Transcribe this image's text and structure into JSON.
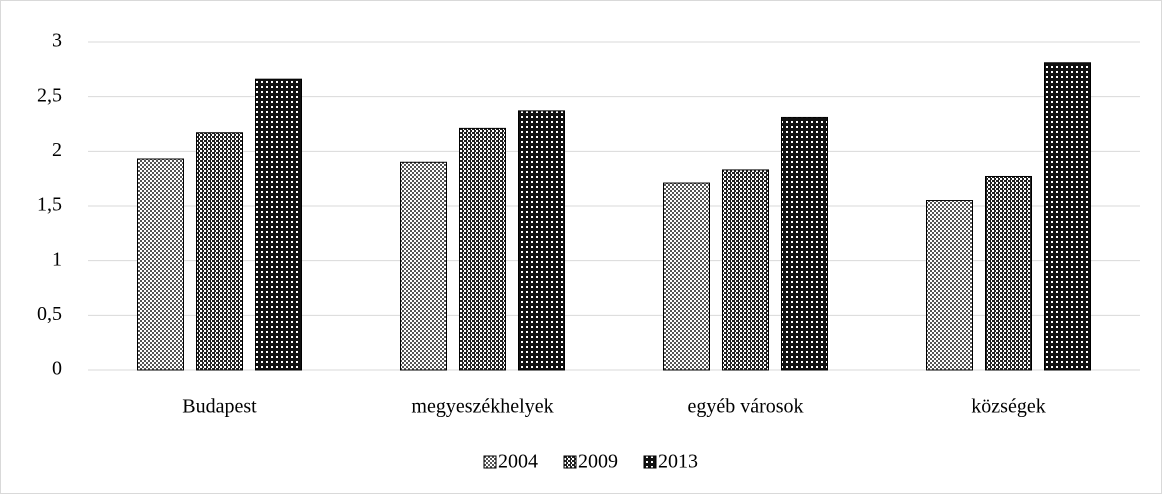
{
  "chart_data": {
    "type": "bar",
    "categories": [
      "Budapest",
      "megyeszékhelyek",
      "egyéb városok",
      "községek"
    ],
    "series": [
      {
        "name": "2004",
        "values": [
          1.93,
          1.9,
          1.71,
          1.55
        ]
      },
      {
        "name": "2009",
        "values": [
          2.17,
          2.21,
          1.83,
          1.77
        ]
      },
      {
        "name": "2013",
        "values": [
          2.66,
          2.37,
          2.31,
          2.81
        ]
      }
    ],
    "ylim": [
      0,
      3
    ],
    "yticks": [
      0,
      {
        "value": 0.5,
        "label": "0,5"
      },
      1,
      {
        "value": 1.5,
        "label": "1,5"
      },
      2,
      {
        "value": 2.5,
        "label": "2,5"
      },
      3
    ],
    "grid": true,
    "legend": "bottom"
  }
}
